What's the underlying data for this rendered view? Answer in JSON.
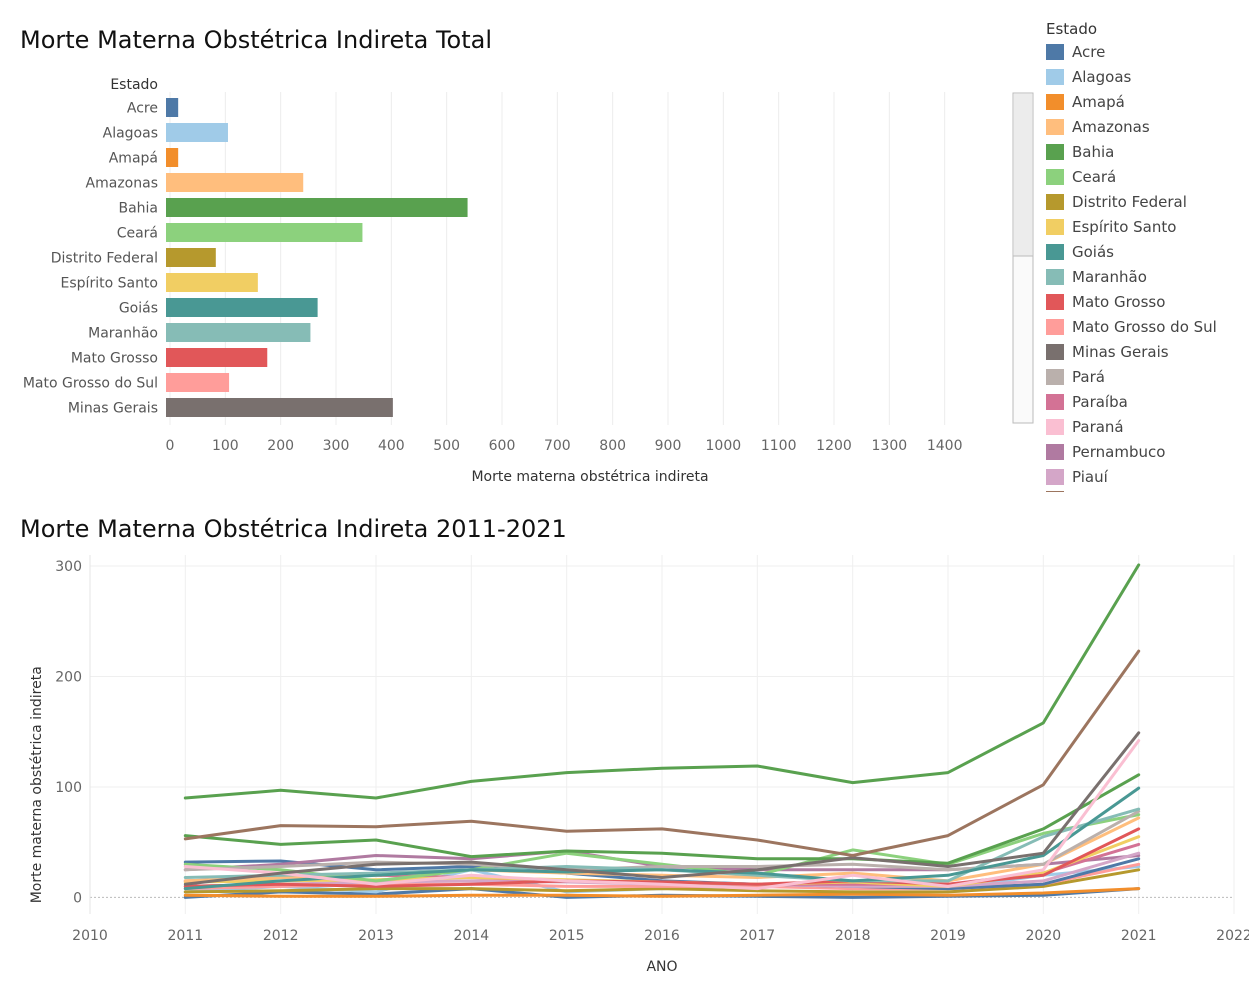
{
  "titles": {
    "top": "Morte Materna Obstétrica Indireta Total",
    "bottom": "Morte Materna Obstétrica Indireta 2011-2021"
  },
  "legend": {
    "title": "Estado",
    "items": [
      {
        "label": "Acre",
        "color": "#4e79a7"
      },
      {
        "label": "Alagoas",
        "color": "#a0cbe8"
      },
      {
        "label": "Amapá",
        "color": "#f28e2b"
      },
      {
        "label": "Amazonas",
        "color": "#ffbe7d"
      },
      {
        "label": "Bahia",
        "color": "#59a14f"
      },
      {
        "label": "Ceará",
        "color": "#8cd17d"
      },
      {
        "label": "Distrito Federal",
        "color": "#b6992d"
      },
      {
        "label": "Espírito Santo",
        "color": "#f1ce63"
      },
      {
        "label": "Goiás",
        "color": "#499894"
      },
      {
        "label": "Maranhão",
        "color": "#86bcb6"
      },
      {
        "label": "Mato Grosso",
        "color": "#e15759"
      },
      {
        "label": "Mato Grosso do Sul",
        "color": "#ff9d9a"
      },
      {
        "label": "Minas Gerais",
        "color": "#79706e"
      },
      {
        "label": "Pará",
        "color": "#bab0ac"
      },
      {
        "label": "Paraíba",
        "color": "#d37295"
      },
      {
        "label": "Paraná",
        "color": "#fabfd2"
      },
      {
        "label": "Pernambuco",
        "color": "#b07aa1"
      },
      {
        "label": "Piauí",
        "color": "#d4a6c8"
      }
    ]
  },
  "chart_data": [
    {
      "type": "bar",
      "orientation": "horizontal",
      "title": "Morte Materna Obstétrica Indireta Total",
      "category_header": "Estado",
      "xlabel": "Morte materna obstétrica indireta",
      "xlim": [
        0,
        1500
      ],
      "xticks": [
        0,
        100,
        200,
        300,
        400,
        500,
        600,
        700,
        800,
        900,
        1000,
        1100,
        1200,
        1300,
        1400
      ],
      "grid": true,
      "categories": [
        "Acre",
        "Alagoas",
        "Amapá",
        "Amazonas",
        "Bahia",
        "Ceará",
        "Distrito Federal",
        "Espírito Santo",
        "Goiás",
        "Maranhão",
        "Mato Grosso",
        "Mato Grosso do Sul",
        "Minas Gerais"
      ],
      "values": [
        22,
        112,
        22,
        248,
        545,
        355,
        90,
        166,
        274,
        261,
        183,
        114,
        410
      ],
      "colors": [
        "#4e79a7",
        "#a0cbe8",
        "#f28e2b",
        "#ffbe7d",
        "#59a14f",
        "#8cd17d",
        "#b6992d",
        "#f1ce63",
        "#499894",
        "#86bcb6",
        "#e15759",
        "#ff9d9a",
        "#79706e"
      ]
    },
    {
      "type": "line",
      "title": "Morte Materna Obstétrica Indireta 2011-2021",
      "xlabel": "ANO",
      "ylabel": "Morte materna obstétrica indireta",
      "xlim": [
        2010,
        2022
      ],
      "ylim": [
        -15,
        310
      ],
      "xticks": [
        2010,
        2011,
        2012,
        2013,
        2014,
        2015,
        2016,
        2017,
        2018,
        2019,
        2020,
        2021,
        2022
      ],
      "yticks": [
        0,
        100,
        200,
        300
      ],
      "grid": true,
      "x": [
        2011,
        2012,
        2013,
        2014,
        2015,
        2016,
        2017,
        2018,
        2019,
        2020,
        2021
      ],
      "series": [
        {
          "name": "Bahia",
          "color": "#59a14f",
          "values": [
            90,
            97,
            90,
            105,
            113,
            117,
            119,
            104,
            113,
            158,
            301
          ]
        },
        {
          "name": "Pernambuco",
          "color": "#9c755f",
          "values": [
            53,
            65,
            64,
            69,
            60,
            62,
            52,
            38,
            56,
            102,
            223
          ]
        },
        {
          "name": "Minas Gerais",
          "color": "#79706e",
          "values": [
            12,
            22,
            30,
            32,
            25,
            18,
            25,
            36,
            28,
            40,
            149
          ]
        },
        {
          "name": "Paraná",
          "color": "#fabfd2",
          "values": [
            28,
            22,
            12,
            20,
            15,
            12,
            8,
            20,
            10,
            25,
            142
          ]
        },
        {
          "name": "Ceará",
          "color": "#59a14f",
          "values": [
            56,
            48,
            52,
            37,
            42,
            40,
            35,
            35,
            31,
            62,
            111
          ]
        },
        {
          "name": "Goiás",
          "color": "#499894",
          "values": [
            8,
            15,
            20,
            25,
            23,
            25,
            22,
            15,
            20,
            38,
            99
          ]
        },
        {
          "name": "Maranhão",
          "color": "#86bcb6",
          "values": [
            18,
            20,
            22,
            25,
            28,
            25,
            20,
            15,
            15,
            55,
            80
          ]
        },
        {
          "name": "Pará",
          "color": "#bab0ac",
          "values": [
            25,
            28,
            32,
            30,
            25,
            28,
            28,
            30,
            25,
            30,
            78
          ]
        },
        {
          "name": "Ceará",
          "color": "#8cd17d",
          "values": [
            30,
            25,
            15,
            25,
            40,
            30,
            20,
            43,
            30,
            58,
            75
          ]
        },
        {
          "name": "Amazonas",
          "color": "#ffbe7d",
          "values": [
            15,
            18,
            20,
            25,
            22,
            20,
            18,
            22,
            15,
            30,
            72
          ]
        },
        {
          "name": "Mato Grosso",
          "color": "#e15759",
          "values": [
            10,
            12,
            10,
            12,
            15,
            14,
            12,
            15,
            12,
            20,
            62
          ]
        },
        {
          "name": "Espírito Santo",
          "color": "#f1ce63",
          "values": [
            14,
            15,
            16,
            18,
            16,
            14,
            12,
            14,
            10,
            22,
            55
          ]
        },
        {
          "name": "Paraíba",
          "color": "#d37295",
          "values": [
            15,
            18,
            20,
            18,
            15,
            14,
            12,
            12,
            12,
            22,
            48
          ]
        },
        {
          "name": "Piauí",
          "color": "#d4a6c8",
          "values": [
            10,
            12,
            14,
            15,
            14,
            12,
            12,
            10,
            10,
            15,
            40
          ]
        },
        {
          "name": "Pernambuco",
          "color": "#b07aa1",
          "values": [
            25,
            30,
            38,
            35,
            42,
            28,
            25,
            25,
            25,
            30,
            38
          ]
        },
        {
          "name": "Acre",
          "color": "#4e79a7",
          "values": [
            32,
            33,
            25,
            28,
            22,
            15,
            12,
            10,
            8,
            12,
            35
          ]
        },
        {
          "name": "Mato Grosso do Sul",
          "color": "#ff9d9a",
          "values": [
            8,
            10,
            12,
            12,
            10,
            10,
            10,
            8,
            8,
            12,
            30
          ]
        },
        {
          "name": "Distrito Federal",
          "color": "#b6992d",
          "values": [
            5,
            6,
            8,
            8,
            6,
            8,
            6,
            5,
            5,
            10,
            25
          ]
        },
        {
          "name": "Alagoas",
          "color": "#a0cbe8",
          "values": [
            5,
            10,
            5,
            25,
            5,
            8,
            10,
            12,
            8,
            20,
            28
          ]
        },
        {
          "name": "Amapá",
          "color": "#f28e2b",
          "values": [
            2,
            1,
            1,
            2,
            2,
            1,
            2,
            3,
            2,
            4,
            8
          ]
        },
        {
          "name": "Acre",
          "color": "#4e79a7",
          "values": [
            0,
            5,
            3,
            8,
            0,
            2,
            1,
            0,
            1,
            2,
            8
          ]
        }
      ]
    }
  ]
}
